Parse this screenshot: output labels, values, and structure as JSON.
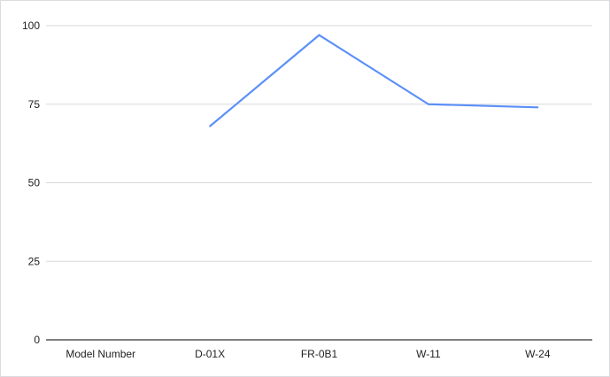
{
  "chart_data": {
    "type": "line",
    "categories": [
      "Model Number",
      "D-01X",
      "FR-0B1",
      "W-11",
      "W-24"
    ],
    "series": [
      {
        "values": [
          null,
          68,
          97,
          75,
          74
        ],
        "color": "#5b8ff9"
      }
    ],
    "title": "",
    "xlabel": "",
    "ylabel": "",
    "ylim": [
      0,
      100
    ],
    "yticks": [
      0,
      25,
      50,
      75,
      100
    ],
    "grid": true,
    "legend": "none"
  }
}
